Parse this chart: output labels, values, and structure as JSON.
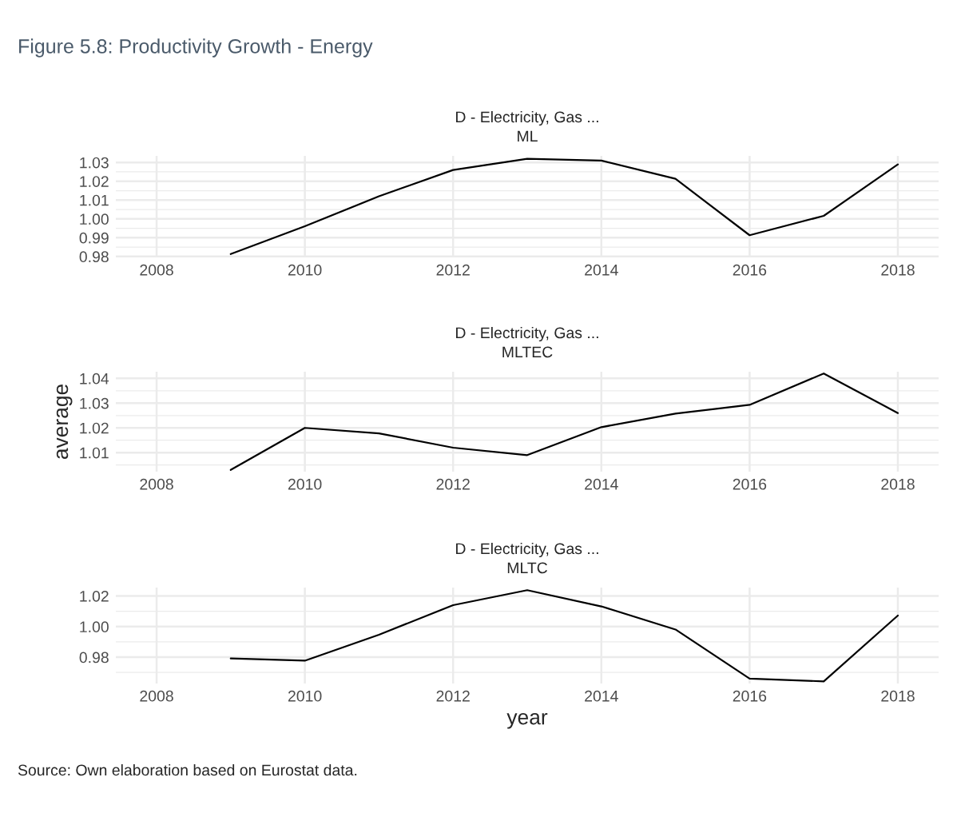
{
  "chart_data": [
    {
      "type": "line",
      "title": "D - Electricity, Gas ...",
      "subtitle": "ML",
      "annotations": [
        "Figure 5.8: Productivity Growth - Energy"
      ],
      "x": [
        2009,
        2010,
        2011,
        2012,
        2013,
        2014,
        2015,
        2016,
        2017,
        2018
      ],
      "series": [
        {
          "color": "#000000",
          "values": [
            0.9813,
            0.9961,
            1.012,
            1.026,
            1.032,
            1.031,
            1.0213,
            0.9913,
            1.0016,
            1.029
          ]
        }
      ],
      "xlim": [
        2007.45,
        2018.55
      ],
      "xticks": [
        2008,
        2010,
        2012,
        2014,
        2016,
        2018
      ],
      "ylim": [
        0.9795,
        1.0335
      ],
      "yticks": [
        {
          "value": 0.98,
          "label": "0.98"
        },
        {
          "value": 0.99,
          "label": "0.99"
        },
        {
          "value": 1.0,
          "label": "1.00"
        },
        {
          "value": 1.01,
          "label": "1.01"
        },
        {
          "value": 1.02,
          "label": "1.02"
        },
        {
          "value": 1.03,
          "label": "1.03"
        }
      ],
      "grid": true,
      "legend": false
    },
    {
      "type": "line",
      "title": "D - Electricity, Gas ...",
      "subtitle": "MLTEC",
      "ylabel": "average",
      "x": [
        2009,
        2010,
        2011,
        2012,
        2013,
        2014,
        2015,
        2016,
        2017,
        2018
      ],
      "series": [
        {
          "color": "#000000",
          "values": [
            1.003,
            1.02,
            1.0178,
            1.012,
            1.009,
            1.0203,
            1.0258,
            1.0293,
            1.042,
            1.026
          ]
        }
      ],
      "xlim": [
        2007.45,
        2018.55
      ],
      "xticks": [
        2008,
        2010,
        2012,
        2014,
        2016,
        2018
      ],
      "ylim": [
        1.0023,
        1.0427
      ],
      "yticks": [
        {
          "value": 1.01,
          "label": "1.01"
        },
        {
          "value": 1.02,
          "label": "1.02"
        },
        {
          "value": 1.03,
          "label": "1.03"
        },
        {
          "value": 1.04,
          "label": "1.04"
        }
      ],
      "grid": true,
      "legend": false
    },
    {
      "type": "line",
      "title": "D - Electricity, Gas ...",
      "subtitle": "MLTC",
      "xlabel": "year",
      "annotations": [
        "Source: Own elaboration based on Eurostat data."
      ],
      "x": [
        2009,
        2010,
        2011,
        2012,
        2013,
        2014,
        2015,
        2016,
        2017,
        2018
      ],
      "series": [
        {
          "color": "#000000",
          "values": [
            0.9792,
            0.9777,
            0.9947,
            1.014,
            1.0238,
            1.0132,
            0.9981,
            0.966,
            0.9642,
            1.0072
          ]
        }
      ],
      "xlim": [
        2007.45,
        2018.55
      ],
      "xticks": [
        2008,
        2010,
        2012,
        2014,
        2016,
        2018
      ],
      "ylim": [
        0.9628,
        1.0255
      ],
      "yticks": [
        {
          "value": 0.98,
          "label": "0.98"
        },
        {
          "value": 1.0,
          "label": "1.00"
        },
        {
          "value": 1.02,
          "label": "1.02"
        }
      ],
      "grid": true,
      "legend": false
    }
  ]
}
